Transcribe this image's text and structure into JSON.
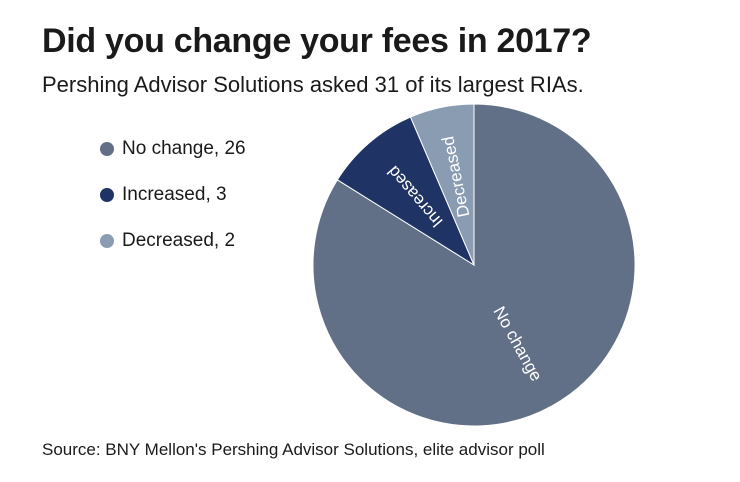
{
  "chart_data": {
    "type": "pie",
    "title": "Did you change your fees in 2017?",
    "subtitle": "Pershing Advisor Solutions asked 31 of its largest RIAs.",
    "source": "Source: BNY Mellon's Pershing Advisor Solutions, elite advisor poll",
    "start_angle_deg": 0,
    "direction": "clockwise",
    "legend_position": "left",
    "slices": [
      {
        "label": "No change",
        "legend_label": "No change, 26",
        "value": 26,
        "color": "#627087"
      },
      {
        "label": "Increased",
        "legend_label": "Increased, 3",
        "value": 3,
        "color": "#1f3464"
      },
      {
        "label": "Decreased",
        "legend_label": "Decreased, 2",
        "value": 2,
        "color": "#8a9cb2"
      }
    ]
  }
}
